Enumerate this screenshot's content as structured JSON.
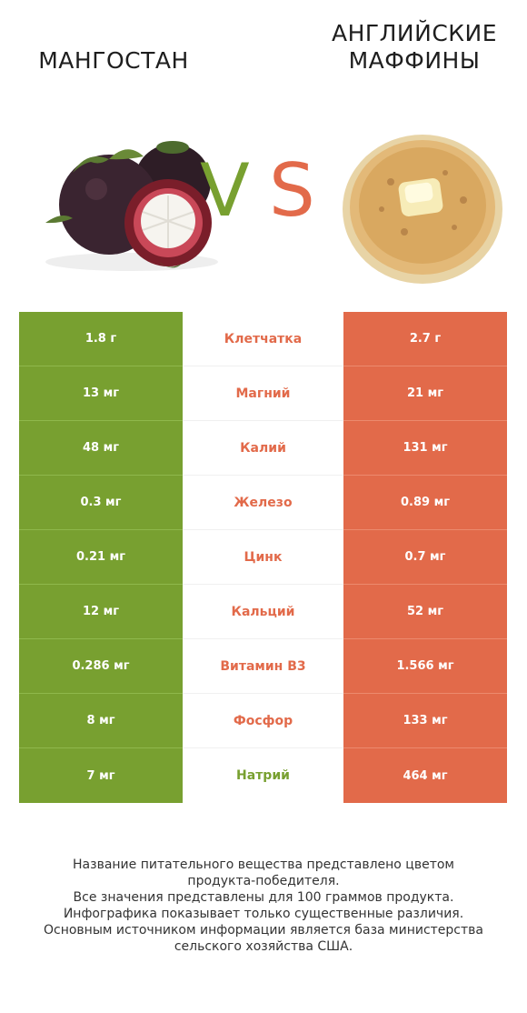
{
  "header": {
    "left_title": "МАНГОСТАН",
    "right_title_line1": "АНГЛИЙСКИЕ",
    "right_title_line2": "МАФФИНЫ",
    "vs_v": "V",
    "vs_s": "S"
  },
  "colors": {
    "left": "#78a030",
    "right": "#e26a4a"
  },
  "chart_data": {
    "type": "table",
    "columns": [
      "Мангостан",
      "Английские маффины"
    ],
    "rows": [
      {
        "nutrient": "Клетчатка",
        "left": "1.8 г",
        "right": "2.7 г",
        "winner": "right"
      },
      {
        "nutrient": "Магний",
        "left": "13 мг",
        "right": "21 мг",
        "winner": "right"
      },
      {
        "nutrient": "Калий",
        "left": "48 мг",
        "right": "131 мг",
        "winner": "right"
      },
      {
        "nutrient": "Железо",
        "left": "0.3 мг",
        "right": "0.89 мг",
        "winner": "right"
      },
      {
        "nutrient": "Цинк",
        "left": "0.21 мг",
        "right": "0.7 мг",
        "winner": "right"
      },
      {
        "nutrient": "Кальций",
        "left": "12 мг",
        "right": "52 мг",
        "winner": "right"
      },
      {
        "nutrient": "Витамин B3",
        "left": "0.286 мг",
        "right": "1.566 мг",
        "winner": "right"
      },
      {
        "nutrient": "Фосфор",
        "left": "8 мг",
        "right": "133 мг",
        "winner": "right"
      },
      {
        "nutrient": "Натрий",
        "left": "7 мг",
        "right": "464 мг",
        "winner": "left"
      }
    ]
  },
  "footer": {
    "line1": "Название питательного вещества представлено цветом",
    "line2": "продукта-победителя.",
    "line3": "Все значения представлены для 100 граммов продукта.",
    "line4": "Инфографика показывает только существенные различия.",
    "line5": "Основным источником информации является база министерства",
    "line6": "сельского хозяйства США."
  }
}
